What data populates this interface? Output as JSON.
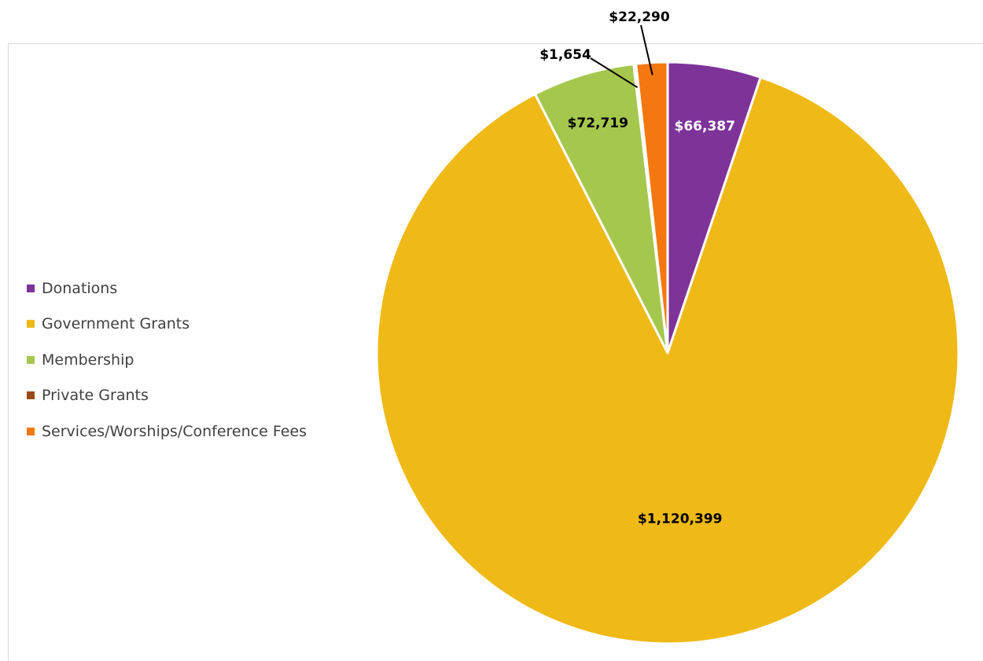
{
  "chart_data": {
    "type": "pie",
    "categories": [
      "Donations",
      "Government Grants",
      "Membership",
      "Private Grants",
      "Services/Worships/Conference Fees"
    ],
    "values": [
      66387,
      1120399,
      72719,
      1654,
      22290
    ],
    "data_labels": [
      "$66,387",
      "$1,120,399",
      "$72,719",
      "$1,654",
      "$22,290"
    ],
    "colors": [
      "#7e3399",
      "#efb917",
      "#a5c74e",
      "#9a4a16",
      "#f4780f"
    ],
    "label_colors": [
      "#ffffff",
      "#000000",
      "#000000",
      "#000000",
      "#000000"
    ],
    "legend_position": "left",
    "title": ""
  }
}
